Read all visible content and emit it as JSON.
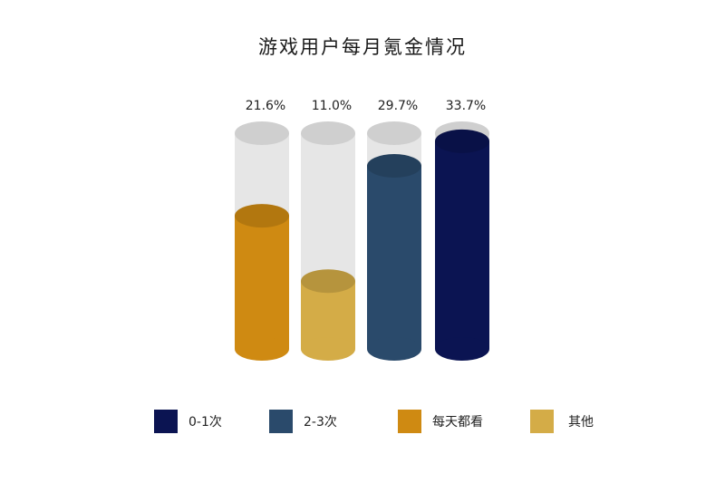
{
  "chart_data": {
    "type": "bar",
    "title": "游戏用户每月氪金情况",
    "categories": [
      "每天都看",
      "其他",
      "2-3次",
      "0-1次"
    ],
    "values": [
      21.6,
      11.0,
      29.7,
      33.7
    ],
    "value_labels": [
      "21.6%",
      "11.0%",
      "29.7%",
      "33.7%"
    ],
    "ylim": [
      0,
      35
    ],
    "unit": "%",
    "style": "3d-cylinder",
    "grid": false,
    "legend_position": "bottom",
    "colors": {
      "每天都看": "#cf8a12",
      "其他": "#d4ac47",
      "2-3次": "#2a4a6b",
      "0-1次": "#0b1452",
      "track": "#e6e6e6"
    },
    "legend": [
      {
        "label": "0-1次",
        "color": "#0b1452"
      },
      {
        "label": "2-3次",
        "color": "#2a4a6b"
      },
      {
        "label": "每天都看",
        "color": "#cf8a12"
      },
      {
        "label": "其他",
        "color": "#d4ac47"
      }
    ]
  }
}
